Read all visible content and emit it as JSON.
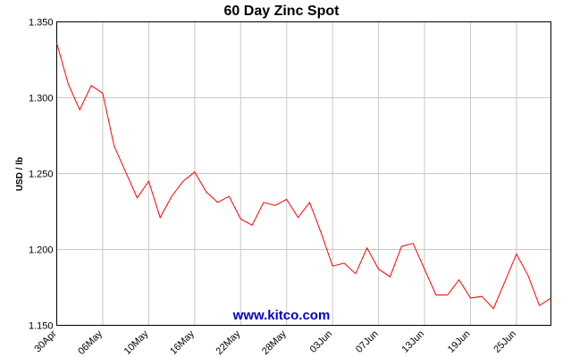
{
  "chart_data": {
    "type": "line",
    "title": "60 Day Zinc Spot",
    "xlabel": "",
    "ylabel": "USD / lb",
    "ylim": [
      1.15,
      1.35
    ],
    "y_ticks": [
      "1.150",
      "1.200",
      "1.250",
      "1.300",
      "1.350"
    ],
    "y_tick_values": [
      1.15,
      1.2,
      1.25,
      1.3,
      1.35
    ],
    "x_ticks": [
      "30Apr",
      "06May",
      "10May",
      "16May",
      "22May",
      "28May",
      "03Jun",
      "07Jun",
      "13Jun",
      "19Jun",
      "25Jun"
    ],
    "x_tick_index": [
      0,
      4,
      8,
      12,
      16,
      20,
      24,
      28,
      32,
      36,
      40
    ],
    "grid": true,
    "legend": "none",
    "line_color": "#ff0000",
    "series": [
      {
        "values": [
          1.336,
          1.309,
          1.292,
          1.308,
          1.303,
          1.268,
          1.251,
          1.234,
          1.245,
          1.221,
          1.235,
          1.245,
          1.251,
          1.238,
          1.231,
          1.235,
          1.22,
          1.216,
          1.231,
          1.229,
          1.233,
          1.221,
          1.231,
          1.211,
          1.189,
          1.191,
          1.184,
          1.201,
          1.187,
          1.182,
          1.202,
          1.204,
          1.187,
          1.17,
          1.17,
          1.18,
          1.168,
          1.169,
          1.161,
          1.179,
          1.197,
          1.183,
          1.163,
          1.168
        ]
      }
    ]
  },
  "watermark": "www.kitco.com"
}
